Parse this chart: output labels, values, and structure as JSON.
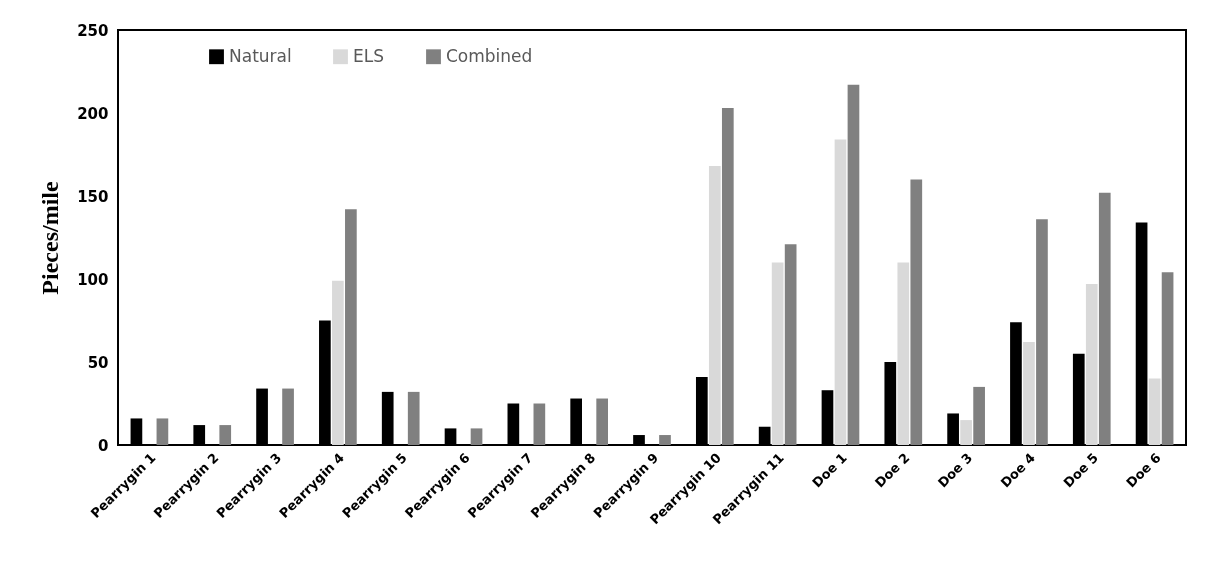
{
  "chart_data": {
    "type": "bar",
    "ylabel": "Pieces/mile",
    "categories": [
      "Pearrygin 1",
      "Pearrygin 2",
      "Pearrygin 3",
      "Pearrygin 4",
      "Pearrygin 5",
      "Pearrygin 6",
      "Pearrygin 7",
      "Pearrygin 8",
      "Pearrygin 9",
      "Pearrygin 10",
      "Pearrygin 11",
      "Doe 1",
      "Doe 2",
      "Doe 3",
      "Doe 4",
      "Doe 5",
      "Doe 6"
    ],
    "series": [
      {
        "name": "Natural",
        "color": "#000000",
        "values": [
          16,
          12,
          34,
          75,
          32,
          10,
          25,
          28,
          6,
          41,
          11,
          33,
          50,
          19,
          74,
          55,
          134
        ]
      },
      {
        "name": "ELS",
        "color": "#d9d9d9",
        "values": [
          0,
          0,
          0,
          99,
          0,
          0,
          0,
          0,
          0,
          168,
          110,
          184,
          110,
          15,
          62,
          97,
          40
        ]
      },
      {
        "name": "Combined",
        "color": "#808080",
        "values": [
          16,
          12,
          34,
          142,
          32,
          10,
          25,
          28,
          6,
          203,
          121,
          217,
          160,
          35,
          136,
          152,
          104
        ]
      }
    ],
    "ylim": [
      0,
      250
    ],
    "yticks": [
      0,
      50,
      100,
      150,
      200,
      250
    ],
    "grid": false,
    "legend": "top left"
  }
}
